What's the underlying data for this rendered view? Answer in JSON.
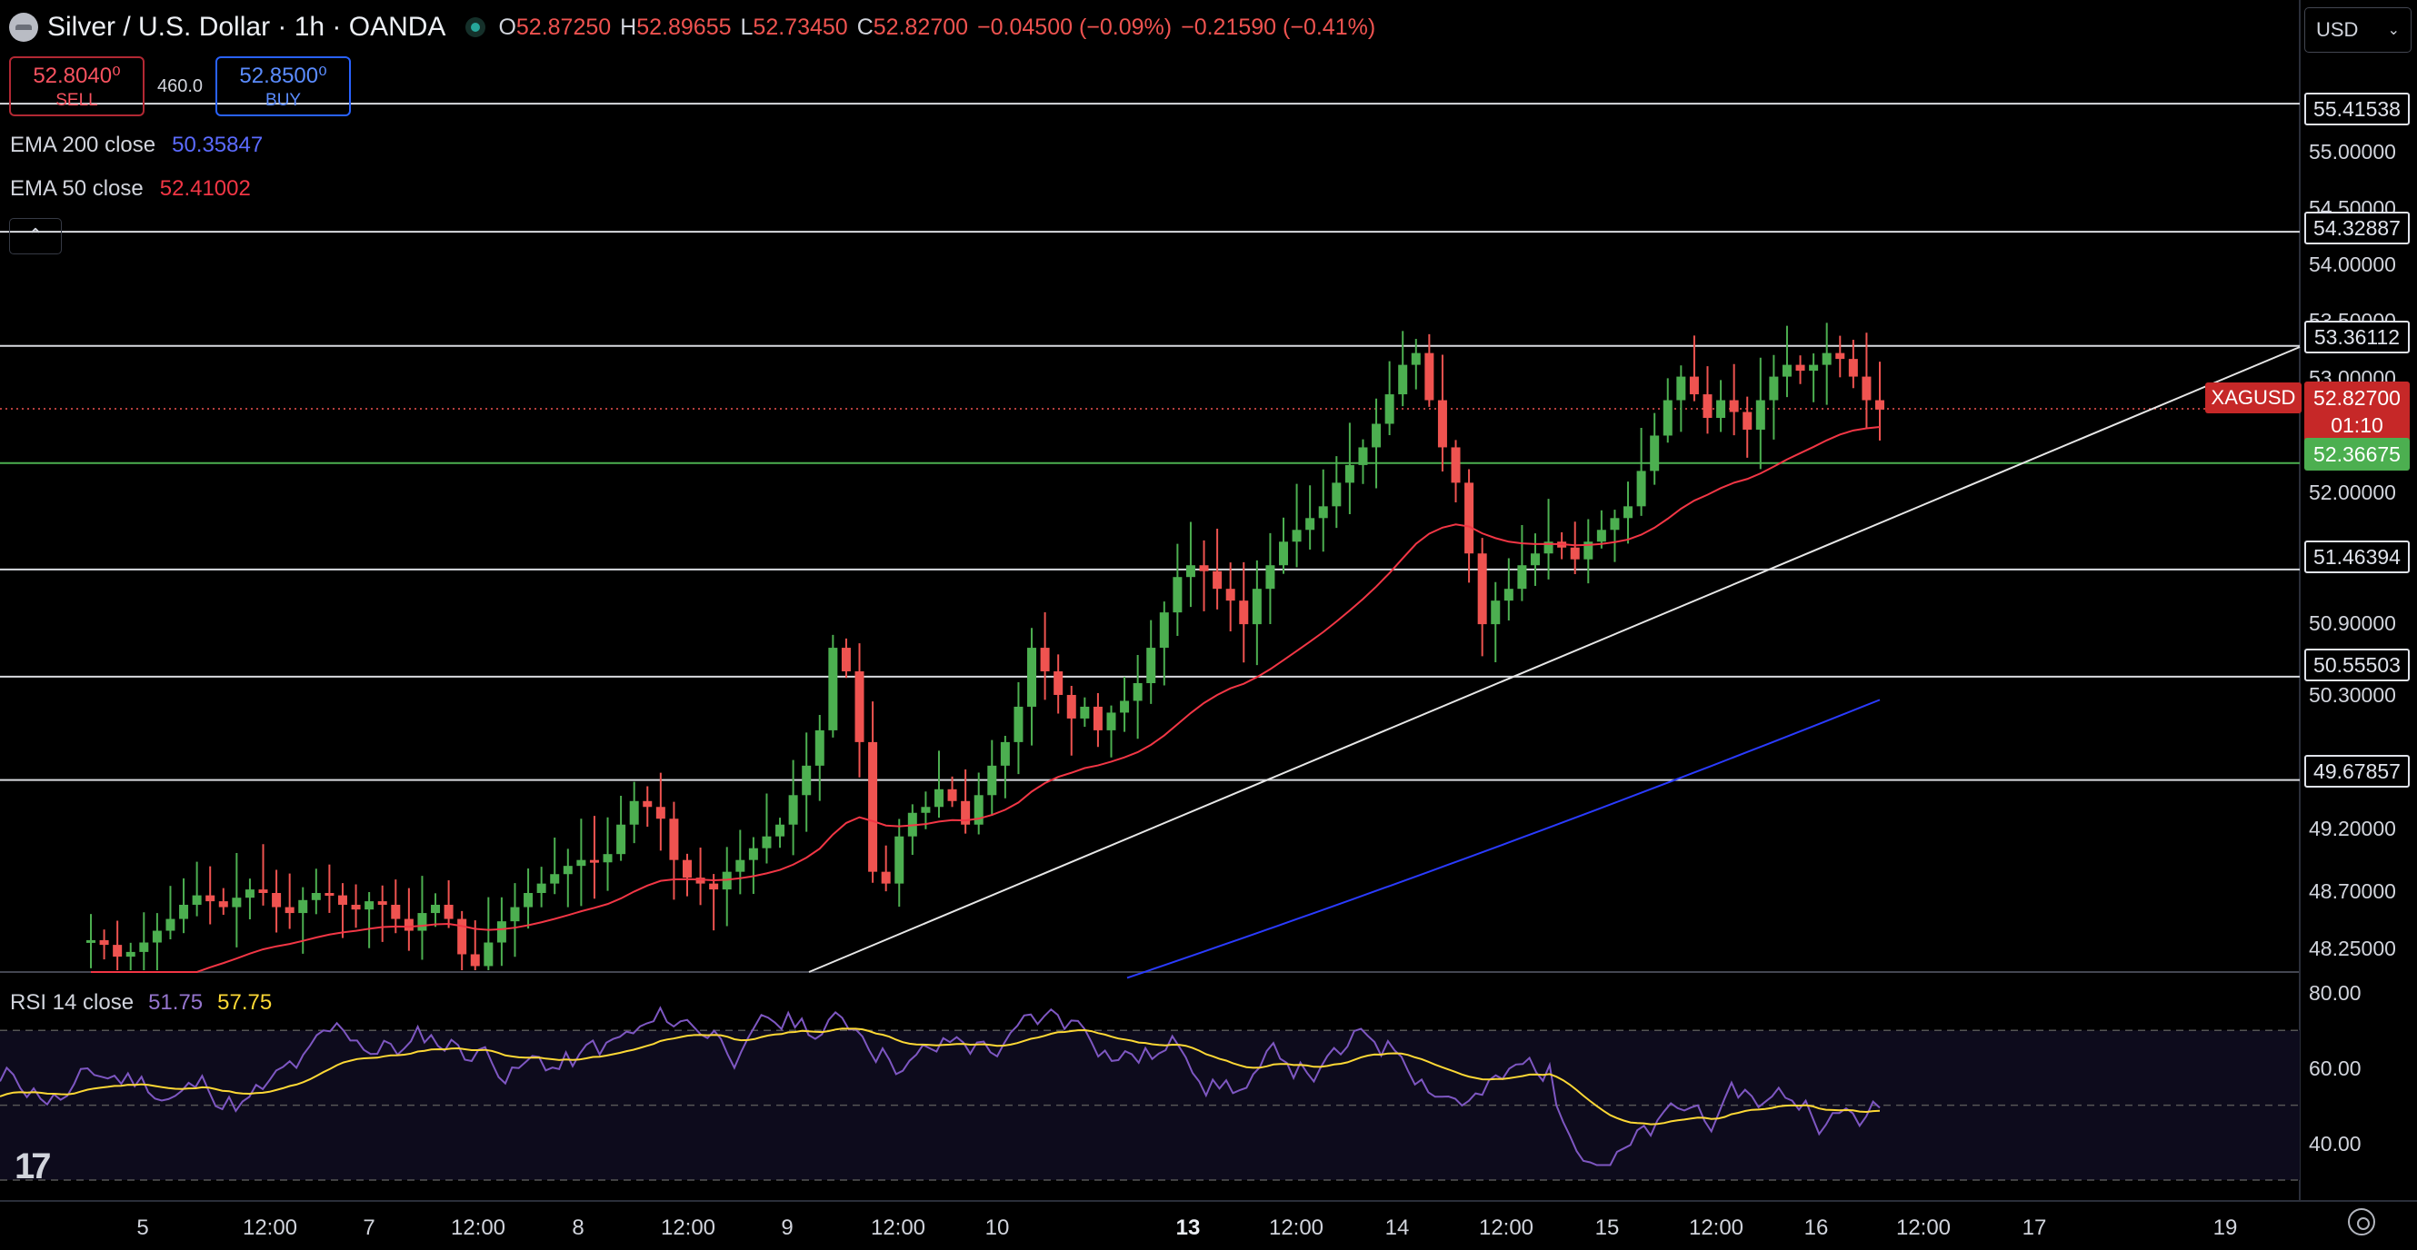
{
  "header": {
    "title": "Silver / U.S. Dollar · 1h · OANDA",
    "ohlc": [
      {
        "k": "O",
        "v": "52.87250"
      },
      {
        "k": "H",
        "v": "52.89655"
      },
      {
        "k": "L",
        "v": "52.73450"
      },
      {
        "k": "C",
        "v": "52.82700"
      }
    ],
    "change": "−0.04500 (−0.09%)",
    "change2": "−0.21590 (−0.41%)"
  },
  "trade": {
    "sell_price": "52.8040⁰",
    "sell_label": "SELL",
    "spread": "460.0",
    "buy_price": "52.8500⁰",
    "buy_label": "BUY"
  },
  "indicators": {
    "ema200_name": "EMA 200 close",
    "ema200_value": "50.35847",
    "ema50_name": "EMA 50 close",
    "ema50_value": "52.41002"
  },
  "currency": "USD",
  "price_axis": [
    "55.00000",
    "54.50000",
    "54.00000",
    "53.50000",
    "53.00000",
    "52.00000",
    "50.90000",
    "50.30000",
    "49.20000",
    "48.70000",
    "48.25000"
  ],
  "levels": [
    "55.41538",
    "54.32887",
    "53.36112",
    "51.46394",
    "50.55503",
    "49.67857"
  ],
  "current": {
    "symbol": "XAGUSD",
    "price": "52.82700",
    "countdown": "01:10"
  },
  "ema50_tag": "52.36675",
  "rsi": {
    "name": "RSI 14 close",
    "value1": "51.75",
    "value2": "57.75",
    "axis": [
      "80.00",
      "60.00",
      "40.00"
    ]
  },
  "time_axis": [
    "5",
    "12:00",
    "7",
    "12:00",
    "8",
    "12:00",
    "9",
    "12:00",
    "10",
    "13",
    "12:00",
    "14",
    "12:00",
    "15",
    "12:00",
    "16",
    "12:00",
    "17",
    "19"
  ],
  "colors": {
    "up": "#4caf50",
    "down": "#ef5350",
    "ema50": "#f23645",
    "ema200": "#2a3bff",
    "rsi": "#7e57c2",
    "rsi_ma": "#fdd835"
  },
  "chart_data": {
    "type": "candlestick",
    "series": [
      {
        "name": "EMA 200 close",
        "last": 50.35847
      },
      {
        "name": "EMA 50 close",
        "last": 52.41002
      }
    ],
    "closes": [
      48.32,
      48.28,
      48.18,
      48.22,
      48.3,
      48.4,
      48.5,
      48.62,
      48.7,
      48.65,
      48.6,
      48.68,
      48.75,
      48.72,
      48.6,
      48.55,
      48.66,
      48.72,
      48.7,
      48.62,
      48.58,
      48.65,
      48.62,
      48.5,
      48.4,
      48.55,
      48.62,
      48.5,
      48.2,
      48.1,
      48.3,
      48.48,
      48.6,
      48.72,
      48.8,
      48.88,
      48.95,
      49.0,
      48.98,
      49.05,
      49.3,
      49.5,
      49.45,
      49.35,
      49.0,
      48.85,
      48.8,
      48.75,
      48.9,
      49.0,
      49.1,
      49.2,
      49.3,
      49.55,
      49.8,
      50.1,
      50.8,
      50.6,
      50.0,
      48.9,
      48.8,
      49.2,
      49.4,
      49.45,
      49.6,
      49.5,
      49.3,
      49.55,
      49.8,
      50.0,
      50.3,
      50.8,
      50.6,
      50.4,
      50.2,
      50.3,
      50.1,
      50.25,
      50.35,
      50.5,
      50.8,
      51.1,
      51.4,
      51.5,
      51.45,
      51.3,
      51.2,
      51.0,
      51.3,
      51.5,
      51.7,
      51.8,
      51.9,
      52.0,
      52.2,
      52.35,
      52.5,
      52.7,
      52.95,
      53.2,
      53.3,
      52.9,
      52.5,
      52.2,
      51.6,
      51.0,
      51.2,
      51.3,
      51.5,
      51.6,
      51.7,
      51.65,
      51.55,
      51.7,
      51.8,
      51.9,
      52.0,
      52.3,
      52.6,
      52.9,
      53.1,
      52.95,
      52.75,
      52.9,
      52.8,
      52.65,
      52.9,
      53.1,
      53.2,
      53.15,
      53.2,
      53.3,
      53.25,
      53.1,
      52.9,
      52.82
    ]
  }
}
